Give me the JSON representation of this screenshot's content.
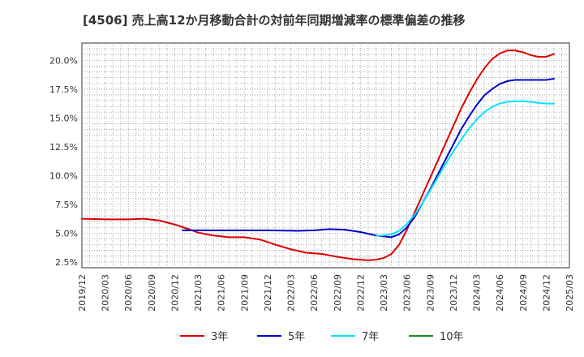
{
  "chart_data": {
    "type": "line",
    "title": "[4506]  売上高12か月移動合計の対前年同期増減率の標準偏差の推移",
    "xlabel": "",
    "ylabel": "",
    "ylim": [
      2.0,
      21.5
    ],
    "yticks": [
      2.5,
      5.0,
      7.5,
      10.0,
      12.5,
      15.0,
      17.5,
      20.0
    ],
    "ytick_labels": [
      "2.5%",
      "5.0%",
      "7.5%",
      "10.0%",
      "12.5%",
      "15.0%",
      "17.5%",
      "20.0%"
    ],
    "x_start": "2019/12",
    "x_end": "2025/03",
    "xtick_labels": [
      "2019/12",
      "2020/03",
      "2020/06",
      "2020/09",
      "2020/12",
      "2021/03",
      "2021/06",
      "2021/09",
      "2021/12",
      "2022/03",
      "2022/06",
      "2022/09",
      "2022/12",
      "2023/03",
      "2023/06",
      "2023/09",
      "2023/12",
      "2024/03",
      "2024/06",
      "2024/09",
      "2024/12",
      "2025/03"
    ],
    "grid": true,
    "legend_position": "bottom",
    "series": [
      {
        "name": "3年",
        "color": "#dd0000",
        "points": [
          [
            "2019/12",
            6.25
          ],
          [
            "2020/03",
            6.2
          ],
          [
            "2020/06",
            6.2
          ],
          [
            "2020/08",
            6.25
          ],
          [
            "2020/10",
            6.1
          ],
          [
            "2020/12",
            5.75
          ],
          [
            "2021/02",
            5.3
          ],
          [
            "2021/03",
            5.05
          ],
          [
            "2021/05",
            4.8
          ],
          [
            "2021/07",
            4.65
          ],
          [
            "2021/09",
            4.65
          ],
          [
            "2021/11",
            4.45
          ],
          [
            "2022/01",
            4.0
          ],
          [
            "2022/03",
            3.6
          ],
          [
            "2022/05",
            3.3
          ],
          [
            "2022/07",
            3.2
          ],
          [
            "2022/09",
            2.95
          ],
          [
            "2022/11",
            2.75
          ],
          [
            "2023/01",
            2.65
          ],
          [
            "2023/02",
            2.7
          ],
          [
            "2023/03",
            2.85
          ],
          [
            "2023/04",
            3.2
          ],
          [
            "2023/05",
            4.0
          ],
          [
            "2023/06",
            5.3
          ],
          [
            "2023/07",
            6.8
          ],
          [
            "2023/08",
            8.3
          ],
          [
            "2023/09",
            9.8
          ],
          [
            "2023/10",
            11.3
          ],
          [
            "2023/11",
            12.8
          ],
          [
            "2023/12",
            14.3
          ],
          [
            "2024/01",
            15.8
          ],
          [
            "2024/02",
            17.1
          ],
          [
            "2024/03",
            18.3
          ],
          [
            "2024/04",
            19.3
          ],
          [
            "2024/05",
            20.1
          ],
          [
            "2024/06",
            20.6
          ],
          [
            "2024/07",
            20.85
          ],
          [
            "2024/08",
            20.85
          ],
          [
            "2024/09",
            20.7
          ],
          [
            "2024/10",
            20.45
          ],
          [
            "2024/11",
            20.3
          ],
          [
            "2024/12",
            20.3
          ],
          [
            "2025/01",
            20.55
          ]
        ]
      },
      {
        "name": "5年",
        "color": "#0000cc",
        "points": [
          [
            "2021/01",
            5.25
          ],
          [
            "2021/06",
            5.25
          ],
          [
            "2021/12",
            5.25
          ],
          [
            "2022/04",
            5.2
          ],
          [
            "2022/06",
            5.25
          ],
          [
            "2022/08",
            5.35
          ],
          [
            "2022/10",
            5.3
          ],
          [
            "2022/12",
            5.1
          ],
          [
            "2023/02",
            4.8
          ],
          [
            "2023/04",
            4.65
          ],
          [
            "2023/05",
            4.9
          ],
          [
            "2023/06",
            5.5
          ],
          [
            "2023/07",
            6.4
          ],
          [
            "2023/08",
            7.6
          ],
          [
            "2023/09",
            8.8
          ],
          [
            "2023/10",
            10.1
          ],
          [
            "2023/11",
            11.4
          ],
          [
            "2023/12",
            12.7
          ],
          [
            "2024/01",
            14.0
          ],
          [
            "2024/02",
            15.1
          ],
          [
            "2024/03",
            16.1
          ],
          [
            "2024/04",
            16.95
          ],
          [
            "2024/05",
            17.5
          ],
          [
            "2024/06",
            17.95
          ],
          [
            "2024/07",
            18.2
          ],
          [
            "2024/08",
            18.3
          ],
          [
            "2024/09",
            18.3
          ],
          [
            "2024/10",
            18.3
          ],
          [
            "2024/11",
            18.3
          ],
          [
            "2024/12",
            18.3
          ],
          [
            "2025/01",
            18.4
          ]
        ]
      },
      {
        "name": "7年",
        "color": "#00e5ff",
        "points": [
          [
            "2023/02",
            4.75
          ],
          [
            "2023/04",
            4.9
          ],
          [
            "2023/05",
            5.2
          ],
          [
            "2023/06",
            5.8
          ],
          [
            "2023/07",
            6.6
          ],
          [
            "2023/08",
            7.6
          ],
          [
            "2023/09",
            8.7
          ],
          [
            "2023/10",
            9.85
          ],
          [
            "2023/11",
            11.0
          ],
          [
            "2023/12",
            12.1
          ],
          [
            "2024/01",
            13.1
          ],
          [
            "2024/02",
            14.05
          ],
          [
            "2024/03",
            14.85
          ],
          [
            "2024/04",
            15.5
          ],
          [
            "2024/05",
            15.95
          ],
          [
            "2024/06",
            16.25
          ],
          [
            "2024/07",
            16.4
          ],
          [
            "2024/08",
            16.45
          ],
          [
            "2024/09",
            16.45
          ],
          [
            "2024/10",
            16.4
          ],
          [
            "2024/11",
            16.3
          ],
          [
            "2024/12",
            16.25
          ],
          [
            "2025/01",
            16.25
          ]
        ]
      },
      {
        "name": "10年",
        "color": "#228822",
        "points": []
      }
    ]
  }
}
